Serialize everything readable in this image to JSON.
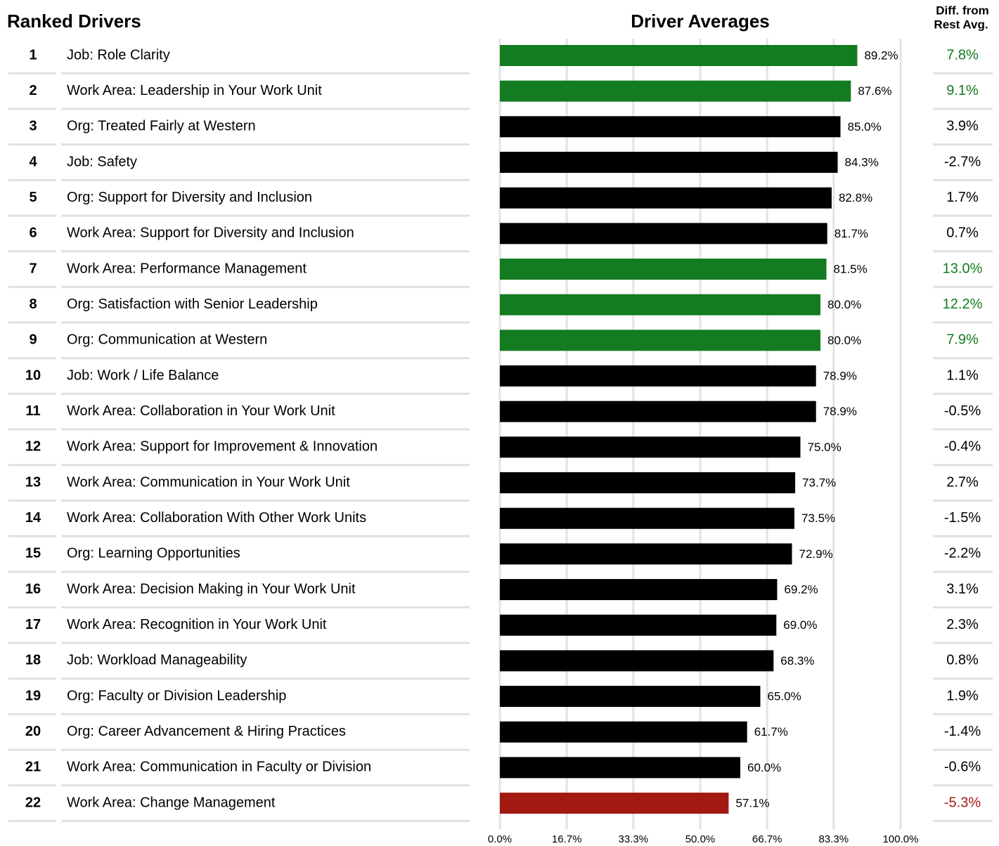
{
  "table": {
    "title": "Ranked Drivers",
    "ranks": [
      1,
      2,
      3,
      4,
      5,
      6,
      7,
      8,
      9,
      10,
      11,
      12,
      13,
      14,
      15,
      16,
      17,
      18,
      19,
      20,
      21,
      22
    ],
    "diff_header": [
      "Diff. from",
      "Rest Avg."
    ],
    "diff": [
      "7.8%",
      "9.1%",
      "3.9%",
      "-2.7%",
      "1.7%",
      "0.7%",
      "13.0%",
      "12.2%",
      "7.9%",
      "1.1%",
      "-0.5%",
      "-0.4%",
      "2.7%",
      "-1.5%",
      "-2.2%",
      "3.1%",
      "2.3%",
      "0.8%",
      "1.9%",
      "-1.4%",
      "-0.6%",
      "-5.3%"
    ]
  },
  "chart_data": {
    "type": "bar",
    "orientation": "horizontal",
    "title": "Driver Averages",
    "categories": [
      "Job: Role Clarity",
      "Work Area: Leadership in Your Work Unit",
      "Org: Treated Fairly at Western",
      "Job: Safety",
      "Org: Support for Diversity and Inclusion",
      "Work Area: Support for Diversity and Inclusion",
      "Work Area: Performance Management",
      "Org: Satisfaction with Senior Leadership",
      "Org: Communication at Western",
      "Job: Work / Life Balance",
      "Work Area: Collaboration in Your Work Unit",
      "Work Area: Support for Improvement & Innovation",
      "Work Area: Communication in Your Work Unit",
      "Work Area: Collaboration With Other Work Units",
      "Org: Learning Opportunities",
      "Work Area: Decision Making in Your Work Unit",
      "Work Area: Recognition in Your Work Unit",
      "Job: Workload Manageability",
      "Org: Faculty or Division Leadership",
      "Org: Career Advancement & Hiring Practices",
      "Work Area: Communication in Faculty or Division",
      "Work Area: Change Management"
    ],
    "values": [
      89.2,
      87.6,
      85.0,
      84.3,
      82.8,
      81.7,
      81.5,
      80.0,
      80.0,
      78.9,
      78.9,
      75.0,
      73.7,
      73.5,
      72.9,
      69.2,
      69.0,
      68.3,
      65.0,
      61.7,
      60.0,
      57.1
    ],
    "value_labels": [
      "89.2%",
      "87.6%",
      "85.0%",
      "84.3%",
      "82.8%",
      "81.7%",
      "81.5%",
      "80.0%",
      "80.0%",
      "78.9%",
      "78.9%",
      "75.0%",
      "73.7%",
      "73.5%",
      "72.9%",
      "69.2%",
      "69.0%",
      "68.3%",
      "65.0%",
      "61.7%",
      "60.0%",
      "57.1%"
    ],
    "colors": [
      "#137b20",
      "#137b20",
      "#000000",
      "#000000",
      "#000000",
      "#000000",
      "#137b20",
      "#137b20",
      "#137b20",
      "#000000",
      "#000000",
      "#000000",
      "#000000",
      "#000000",
      "#000000",
      "#000000",
      "#000000",
      "#000000",
      "#000000",
      "#000000",
      "#000000",
      "#a31a12"
    ],
    "xlim": [
      0,
      100
    ],
    "xticks": [
      {
        "value": 0,
        "label": "0.0%"
      },
      {
        "value": 16.7,
        "label": "16.7%"
      },
      {
        "value": 33.3,
        "label": "33.3%"
      },
      {
        "value": 50,
        "label": "50.0%"
      },
      {
        "value": 66.7,
        "label": "66.7%"
      },
      {
        "value": 83.3,
        "label": "83.3%"
      },
      {
        "value": 100,
        "label": "100.0%"
      }
    ],
    "grid": true
  }
}
